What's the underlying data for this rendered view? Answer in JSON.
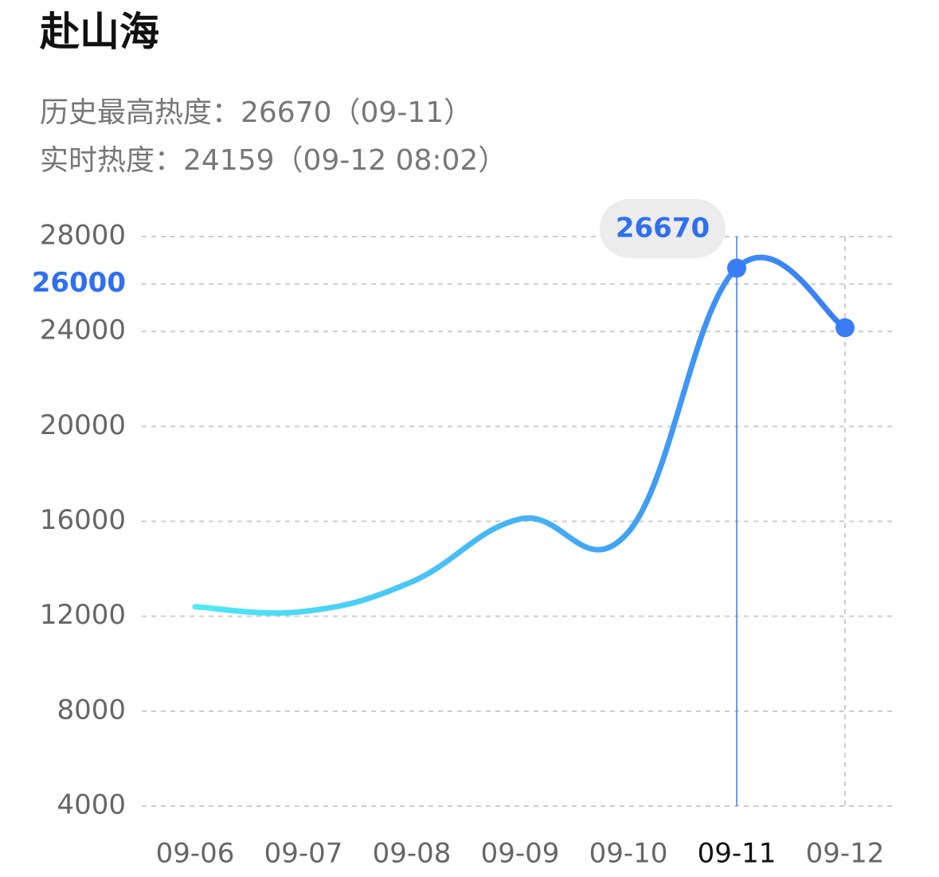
{
  "header": {
    "title": "赴山海",
    "lines": [
      "历史最高热度：26670（09-11）",
      "实时热度：24159（09-12 08:02）"
    ]
  },
  "chart_data": {
    "type": "line",
    "categories": [
      "09-06",
      "09-07",
      "09-08",
      "09-09",
      "09-10",
      "09-11",
      "09-12"
    ],
    "series": [
      {
        "name": "热度",
        "color": "#3a7cf5",
        "start_color": "#4eeaf6",
        "values": [
          12400,
          12200,
          13450,
          16100,
          15550,
          26670,
          24159
        ]
      }
    ],
    "ylim": [
      4000,
      28000
    ],
    "yticks": [
      4000,
      8000,
      12000,
      16000,
      20000,
      24000,
      26000,
      28000
    ],
    "grid": true,
    "selected": "09-11"
  }
}
